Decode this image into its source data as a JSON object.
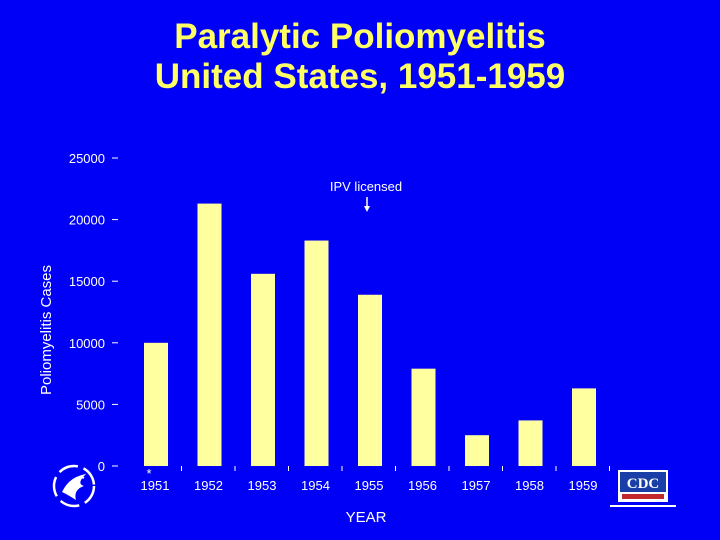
{
  "chart_data": {
    "type": "bar",
    "title": [
      "Paralytic Poliomyelitis",
      "United States, 1951-1959"
    ],
    "xlabel": "YEAR",
    "ylabel": "Poliomyelitis Cases",
    "categories": [
      "1951",
      "1952",
      "1953",
      "1954",
      "1955",
      "1956",
      "1957",
      "1958",
      "1959"
    ],
    "values": [
      10000,
      21300,
      15600,
      18300,
      13900,
      7900,
      2500,
      3700,
      6300
    ],
    "ylim": [
      0,
      25000
    ],
    "yticks": [
      "0",
      "5000",
      "10000",
      "15000",
      "20000",
      "25000"
    ],
    "grid": false,
    "bar_color": "#ffffa0",
    "background_color": "#0000f6",
    "title_color": "#ffff66",
    "annotations": [
      {
        "text": "IPV licensed",
        "category": "1955",
        "arrow": "down"
      },
      {
        "text": "*",
        "category": "1951"
      }
    ]
  },
  "logos": {
    "left": "hhs-eagle-logo",
    "right": "cdc-logo"
  }
}
